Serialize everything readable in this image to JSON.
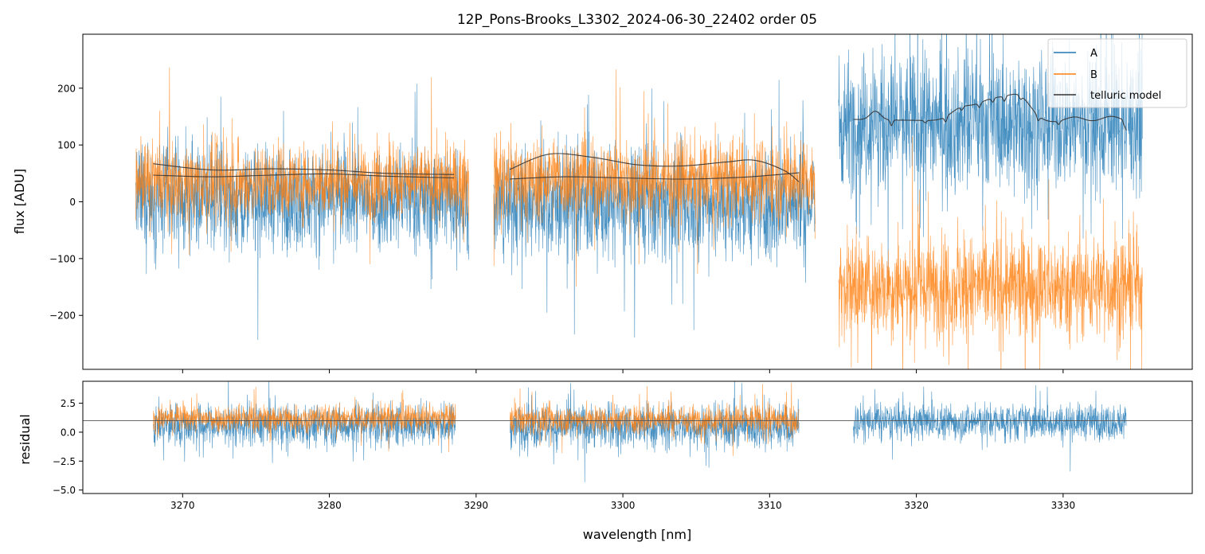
{
  "chart_data": {
    "type": "line",
    "title": "12P_Pons-Brooks_L3302_2024-06-30_22402  order 05",
    "xlabel": "wavelength [nm]",
    "xlim": [
      3263.2,
      3338.8
    ],
    "xticks": [
      3270,
      3280,
      3290,
      3300,
      3310,
      3320,
      3330
    ],
    "colors": {
      "A": "#1f77b4",
      "B": "#ff7f0e",
      "model": "#333333",
      "reference": "#555555"
    },
    "top_panel": {
      "ylabel": "flux [ADU]",
      "ylim": [
        -295,
        295
      ],
      "yticks": [
        -200,
        -100,
        0,
        100,
        200
      ],
      "legend": {
        "position": "upper-right",
        "entries": [
          {
            "label": "A",
            "series": "A"
          },
          {
            "label": "B",
            "series": "B"
          },
          {
            "label": "telluric model",
            "series": "model"
          }
        ]
      },
      "series": [
        {
          "name": "A",
          "segment": 1,
          "x_range": [
            3266.8,
            3289.5
          ],
          "baseline": 5,
          "noise_amplitude": 150
        },
        {
          "name": "B",
          "segment": 1,
          "x_range": [
            3266.8,
            3289.5
          ],
          "baseline": 35,
          "noise_amplitude": 110
        },
        {
          "name": "A",
          "segment": 2,
          "x_range": [
            3291.2,
            3313.1
          ],
          "baseline": -5,
          "noise_amplitude": 160
        },
        {
          "name": "B",
          "segment": 2,
          "x_range": [
            3291.2,
            3313.1
          ],
          "baseline": 40,
          "noise_amplitude": 120
        },
        {
          "name": "A",
          "segment": 3,
          "x_range": [
            3314.7,
            3335.4
          ],
          "baseline": 140,
          "noise_amplitude": 200
        },
        {
          "name": "B",
          "segment": 3,
          "x_range": [
            3314.7,
            3335.4
          ],
          "baseline": -150,
          "noise_amplitude": 150
        }
      ],
      "telluric_model": [
        {
          "segment": 1,
          "curve": "upper",
          "x": [
            3268,
            3272,
            3276,
            3280,
            3284,
            3288.5
          ],
          "y": [
            67,
            56,
            58,
            56,
            50,
            48
          ]
        },
        {
          "segment": 1,
          "curve": "lower",
          "x": [
            3268,
            3272,
            3276,
            3280,
            3284,
            3288.5
          ],
          "y": [
            47,
            44,
            47,
            49,
            45,
            42
          ]
        },
        {
          "segment": 2,
          "curve": "upper",
          "x": [
            3292.3,
            3295,
            3298,
            3301,
            3304,
            3307,
            3309,
            3311,
            3312
          ],
          "y": [
            57,
            84,
            78,
            65,
            63,
            70,
            73,
            55,
            35
          ]
        },
        {
          "segment": 2,
          "curve": "lower",
          "x": [
            3292.3,
            3296,
            3300,
            3304,
            3308,
            3312
          ],
          "y": [
            40,
            44,
            42,
            40,
            43,
            51
          ]
        },
        {
          "segment": 3,
          "curve": "absorption",
          "x": [
            3315.7,
            3334.3
          ],
          "y": [
            145,
            138
          ]
        }
      ]
    },
    "bottom_panel": {
      "ylabel": "residual",
      "ylim": [
        -5.3,
        4.4
      ],
      "yticks": [
        -5.0,
        -2.5,
        0.0,
        2.5
      ],
      "ytick_labels": [
        "−5.0",
        "−2.5",
        "0.0",
        "2.5"
      ],
      "reference_line": 1.0,
      "series": [
        {
          "name": "A",
          "segment": 1,
          "x_range": [
            3268,
            3288.6
          ],
          "baseline": 0.6,
          "noise_amplitude": 3.0
        },
        {
          "name": "B",
          "segment": 1,
          "x_range": [
            3268,
            3288.6
          ],
          "baseline": 1.2,
          "noise_amplitude": 2.0
        },
        {
          "name": "A",
          "segment": 2,
          "x_range": [
            3292.3,
            3312
          ],
          "baseline": 0.5,
          "noise_amplitude": 3.2
        },
        {
          "name": "B",
          "segment": 2,
          "x_range": [
            3292.3,
            3312
          ],
          "baseline": 1.1,
          "noise_amplitude": 2.1
        },
        {
          "name": "A",
          "segment": 3,
          "x_range": [
            3315.7,
            3334.3
          ],
          "baseline": 0.9,
          "noise_amplitude": 2.6
        }
      ]
    }
  }
}
